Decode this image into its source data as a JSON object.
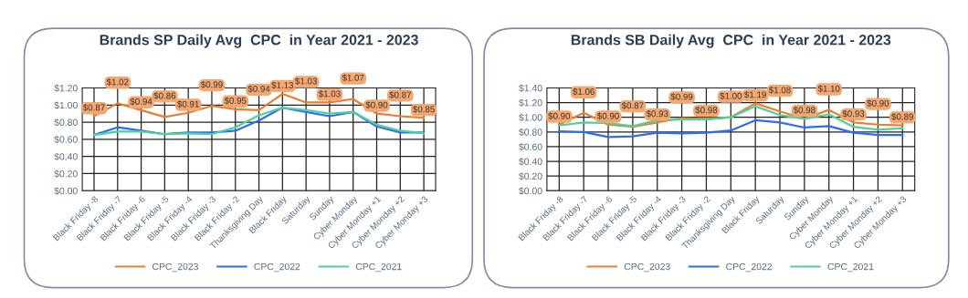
{
  "chart_data": [
    {
      "type": "line",
      "title": "Brands SP Daily Avg  CPC  in Year 2021 - 2023",
      "categories": [
        "Black Friday -8",
        "Black Friday -7",
        "Black Friday -6",
        "Black Friday -5",
        "Black Friday -4",
        "Black Friday -3",
        "Black Friday -2",
        "Thanksgiving Day",
        "Black Friday",
        "Saturday",
        "Sunday",
        "Cyber Monday",
        "Cyber Monday +1",
        "Cyber Monday +2",
        "Cyber Monday +3"
      ],
      "series": [
        {
          "name": "CPC_2023",
          "color": "#ed7d31",
          "values": [
            0.87,
            1.02,
            0.94,
            0.86,
            0.91,
            0.99,
            0.95,
            0.94,
            1.13,
            1.03,
            1.03,
            1.07,
            0.9,
            0.87,
            0.85
          ],
          "value_labels": [
            "$0.87",
            "$1.02",
            "$0.94",
            "$0.86",
            "$0.91",
            "$0.99",
            "$0.95",
            "$0.94",
            "$1.13",
            "$1.03",
            "$1.03",
            "$1.07",
            "$0.90",
            "$0.87",
            "$0.85"
          ]
        },
        {
          "name": "CPC_2022",
          "color": "#2f6cf5",
          "values": [
            0.65,
            0.74,
            0.7,
            0.66,
            0.68,
            0.68,
            0.7,
            0.82,
            0.97,
            0.92,
            0.87,
            0.92,
            0.75,
            0.68,
            0.68
          ]
        },
        {
          "name": "CPC_2021",
          "color": "#4fd19b",
          "values": [
            0.65,
            0.69,
            0.69,
            0.66,
            0.67,
            0.66,
            0.74,
            0.88,
            0.97,
            0.94,
            0.9,
            0.92,
            0.77,
            0.7,
            0.67
          ]
        }
      ],
      "ylim": [
        0,
        1.2
      ],
      "yticks": [
        {
          "value": 0,
          "label": "$0.00"
        },
        {
          "value": 0.2,
          "label": "$0.20"
        },
        {
          "value": 0.4,
          "label": "$0.40"
        },
        {
          "value": 0.6,
          "label": "$0.60"
        },
        {
          "value": 0.8,
          "label": "$0.80"
        },
        {
          "value": 1.0,
          "label": "$1.00"
        },
        {
          "value": 1.2,
          "label": "$1.20"
        }
      ],
      "grid": true,
      "legend": "bottom",
      "marker": "none",
      "line_style": "solid"
    },
    {
      "type": "line",
      "title": "Brands SB Daily Avg  CPC  in Year 2021 - 2023",
      "categories": [
        "Black Friday -8",
        "Black Friday -7",
        "Black Friday -6",
        "Black Friday -5",
        "Black Friday -4",
        "Black Friday -3",
        "Black Friday -2",
        "Thanksgiving Day",
        "Black Friday",
        "Saturday",
        "Sunday",
        "Cyber Monday",
        "Cyber Monday +1",
        "Cyber Monday +2",
        "Cyber Monday +3"
      ],
      "series": [
        {
          "name": "CPC_2023",
          "color": "#ed7d31",
          "values": [
            0.9,
            1.06,
            0.9,
            0.87,
            0.93,
            0.99,
            0.98,
            1.0,
            1.19,
            1.08,
            0.98,
            1.1,
            0.93,
            0.9,
            0.89
          ],
          "value_labels": [
            "$0.90",
            "$1.06",
            "$0.90",
            "$0.87",
            "$0.93",
            "$0.99",
            "$0.98",
            "$1.00",
            "$1.19",
            "$1.08",
            "$0.98",
            "$1.10",
            "$0.93",
            "$0.90",
            "$0.89"
          ]
        },
        {
          "name": "CPC_2022",
          "color": "#2f6cf5",
          "values": [
            0.81,
            0.8,
            0.73,
            0.74,
            0.79,
            0.78,
            0.79,
            0.82,
            0.96,
            0.93,
            0.86,
            0.88,
            0.79,
            0.76,
            0.76
          ]
        },
        {
          "name": "CPC_2021",
          "color": "#4fd19b",
          "values": [
            0.89,
            0.93,
            0.92,
            0.88,
            0.96,
            0.97,
            0.97,
            1.0,
            1.15,
            1.03,
            0.98,
            1.04,
            0.87,
            0.83,
            0.85
          ]
        }
      ],
      "ylim": [
        0,
        1.4
      ],
      "yticks": [
        {
          "value": 0,
          "label": "$0.00"
        },
        {
          "value": 0.2,
          "label": "$0.20"
        },
        {
          "value": 0.4,
          "label": "$0.40"
        },
        {
          "value": 0.6,
          "label": "$0.60"
        },
        {
          "value": 0.8,
          "label": "$0.80"
        },
        {
          "value": 1.0,
          "label": "$1.00"
        },
        {
          "value": 1.2,
          "label": "$1.20"
        },
        {
          "value": 1.4,
          "label": "$1.40"
        }
      ],
      "grid": true,
      "legend": "bottom",
      "marker": "none",
      "line_style": "solid"
    }
  ]
}
